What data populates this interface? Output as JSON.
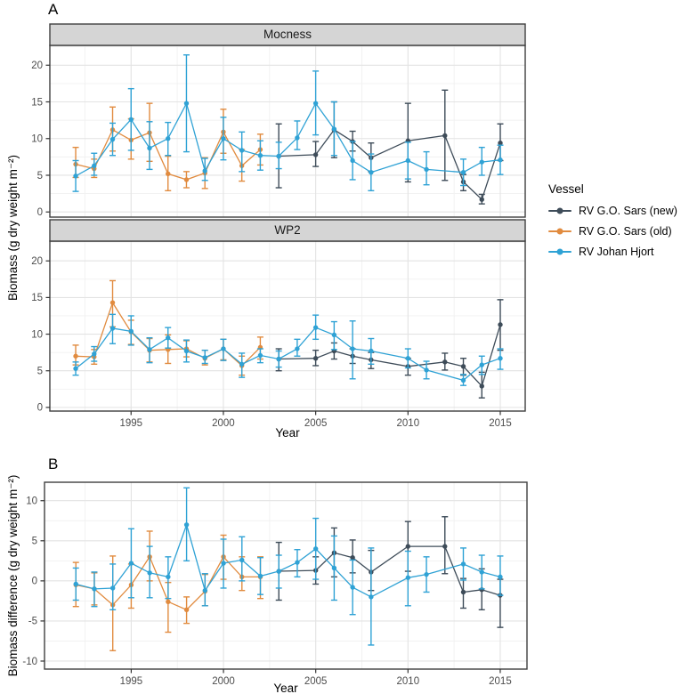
{
  "figure": {
    "panel_a_label": "A",
    "panel_b_label": "B",
    "y_axis_label_biomass": "Biomass (g dry weight  m⁻²)",
    "y_axis_label_difference": "Biomass difference (g dry weight  m⁻²)",
    "x_axis_label": "Year"
  },
  "legend": {
    "title": "Vessel",
    "entries": [
      {
        "label": "RV G.O. Sars (new)",
        "color": "#3E4C59"
      },
      {
        "label": "RV G.O. Sars (old)",
        "color": "#E18B3F"
      },
      {
        "label": "RV Johan Hjort",
        "color": "#2FA2D5"
      }
    ]
  },
  "colors": {
    "grid_major": "#e3e3e3",
    "grid_minor": "#f1f1f1",
    "panel_border": "#3f3f3f",
    "strip_bg": "#d5d5d5",
    "tick_text": "#4d4d4d"
  },
  "chart_data": [
    {
      "type": "line",
      "title": "Mocness",
      "xlabel": "Year",
      "ylabel": "Biomass (g dry weight m⁻²)",
      "xlim": [
        1990.6,
        2016.35
      ],
      "ylim": [
        -0.7,
        22.7
      ],
      "x_ticks": [
        1995,
        2000,
        2005,
        2010,
        2015
      ],
      "x_minor_ticks": [
        1992.5,
        1997.5,
        2002.5,
        2007.5,
        2012.5
      ],
      "y_ticks": [
        0,
        5,
        10,
        15,
        20
      ],
      "y_minor_ticks": [
        2.5,
        7.5,
        12.5,
        17.5,
        22.5
      ],
      "error_bars": true,
      "series": [
        {
          "name": "RV G.O. Sars (new)",
          "color": "#3E4C59",
          "x": [
            2003,
            2005,
            2006,
            2007,
            2008,
            2010,
            2012,
            2013,
            2014,
            2015
          ],
          "y": [
            7.6,
            7.8,
            11.2,
            9.6,
            7.4,
            9.7,
            10.4,
            4.1,
            1.7,
            9.4
          ],
          "ylo": [
            3.3,
            6.2,
            7.4,
            8.3,
            5.5,
            4.1,
            4.3,
            2.9,
            1.1,
            7.0
          ],
          "yhi": [
            12.0,
            9.6,
            15.0,
            11.0,
            9.4,
            14.8,
            16.6,
            5.1,
            2.4,
            12.0
          ]
        },
        {
          "name": "RV G.O. Sars (old)",
          "color": "#E18B3F",
          "x": [
            1992,
            1993,
            1994,
            1995,
            1996,
            1997,
            1998,
            1999,
            2000,
            2001,
            2002
          ],
          "y": [
            6.5,
            5.9,
            11.2,
            9.8,
            10.8,
            5.2,
            4.4,
            5.3,
            10.9,
            6.3,
            8.5
          ],
          "ylo": [
            4.7,
            4.7,
            8.3,
            7.2,
            6.9,
            2.9,
            3.3,
            3.2,
            8.0,
            4.2,
            6.4
          ],
          "yhi": [
            8.8,
            7.2,
            14.3,
            12.7,
            14.8,
            7.6,
            5.5,
            7.4,
            14.0,
            8.5,
            10.6
          ]
        },
        {
          "name": "RV Johan Hjort",
          "color": "#2FA2D5",
          "x": [
            1992,
            1993,
            1994,
            1995,
            1996,
            1997,
            1998,
            1999,
            2000,
            2001,
            2002,
            2003,
            2004,
            2005,
            2006,
            2007,
            2008,
            2010,
            2011,
            2013,
            2014,
            2015
          ],
          "y": [
            4.9,
            6.3,
            9.9,
            12.6,
            8.7,
            10.0,
            14.8,
            5.6,
            10.0,
            8.4,
            7.7,
            7.6,
            10.1,
            14.8,
            11.3,
            7.0,
            5.4,
            7.0,
            5.8,
            5.4,
            6.8,
            7.1
          ],
          "ylo": [
            2.8,
            5.0,
            7.7,
            8.4,
            5.8,
            7.7,
            8.2,
            4.3,
            7.1,
            5.5,
            5.7,
            5.9,
            8.5,
            10.5,
            7.7,
            4.4,
            2.9,
            4.5,
            3.7,
            3.6,
            5.0,
            5.1
          ],
          "yhi": [
            7.0,
            8.0,
            12.1,
            16.8,
            12.3,
            12.2,
            21.4,
            7.3,
            12.9,
            10.9,
            9.7,
            9.5,
            12.4,
            19.2,
            15.0,
            9.6,
            7.9,
            9.5,
            8.2,
            7.2,
            8.8,
            9.1
          ]
        }
      ]
    },
    {
      "type": "line",
      "title": "WP2",
      "xlabel": "Year",
      "ylabel": "Biomass (g dry weight m⁻²)",
      "xlim": [
        1990.6,
        2016.35
      ],
      "ylim": [
        -0.5,
        22.7
      ],
      "x_ticks": [
        1995,
        2000,
        2005,
        2010,
        2015
      ],
      "x_minor_ticks": [
        1992.5,
        1997.5,
        2002.5,
        2007.5,
        2012.5
      ],
      "y_ticks": [
        0,
        5,
        10,
        15,
        20
      ],
      "y_minor_ticks": [
        2.5,
        7.5,
        12.5,
        17.5,
        22.5
      ],
      "error_bars": true,
      "series": [
        {
          "name": "RV G.O. Sars (new)",
          "color": "#3E4C59",
          "x": [
            2003,
            2005,
            2006,
            2007,
            2008,
            2010,
            2012,
            2013,
            2014,
            2015
          ],
          "y": [
            6.6,
            6.7,
            7.7,
            7.0,
            6.5,
            5.6,
            6.2,
            5.6,
            2.9,
            11.3
          ],
          "ylo": [
            5.0,
            5.7,
            6.6,
            6.0,
            5.3,
            4.4,
            5.1,
            4.4,
            1.3,
            7.8
          ],
          "yhi": [
            8.0,
            7.8,
            8.8,
            8.0,
            7.5,
            6.7,
            7.4,
            6.7,
            4.8,
            14.7
          ]
        },
        {
          "name": "RV G.O. Sars (old)",
          "color": "#E18B3F",
          "x": [
            1992,
            1993,
            1994,
            1995,
            1996,
            1997,
            1998,
            1999,
            2000,
            2001,
            2002
          ],
          "y": [
            7.0,
            6.9,
            14.3,
            10.3,
            7.8,
            7.9,
            8.0,
            6.7,
            8.0,
            5.7,
            8.2
          ],
          "ylo": [
            5.8,
            5.9,
            11.0,
            8.6,
            6.2,
            6.0,
            6.9,
            5.8,
            6.5,
            4.4,
            6.6
          ],
          "yhi": [
            8.5,
            7.9,
            17.3,
            11.9,
            9.4,
            9.9,
            9.1,
            7.8,
            9.3,
            7.0,
            9.6
          ]
        },
        {
          "name": "RV Johan Hjort",
          "color": "#2FA2D5",
          "x": [
            1992,
            1993,
            1994,
            1995,
            1996,
            1997,
            1998,
            1999,
            2000,
            2001,
            2002,
            2003,
            2004,
            2005,
            2006,
            2007,
            2008,
            2010,
            2011,
            2013,
            2014,
            2015
          ],
          "y": [
            5.3,
            7.3,
            10.8,
            10.4,
            7.9,
            9.5,
            7.7,
            6.8,
            8.0,
            5.9,
            7.1,
            6.6,
            8.0,
            10.9,
            9.9,
            8.0,
            7.7,
            6.7,
            5.1,
            3.7,
            5.8,
            6.7
          ],
          "ylo": [
            4.4,
            6.3,
            8.7,
            8.5,
            6.1,
            8.1,
            6.2,
            6.0,
            6.4,
            4.1,
            6.1,
            5.5,
            7.0,
            9.3,
            7.9,
            3.9,
            5.9,
            5.4,
            3.9,
            3.0,
            4.5,
            5.2
          ],
          "yhi": [
            6.2,
            8.3,
            12.7,
            12.5,
            9.5,
            10.9,
            9.2,
            7.8,
            9.3,
            7.4,
            8.0,
            7.7,
            9.3,
            12.6,
            11.7,
            11.8,
            9.4,
            8.0,
            6.3,
            4.5,
            7.0,
            8.0
          ]
        }
      ]
    },
    {
      "type": "line",
      "title": "",
      "xlabel": "Year",
      "ylabel": "Biomass difference (g dry weight m⁻²)",
      "xlim": [
        1990.3,
        2016.45
      ],
      "ylim": [
        -11.0,
        12.3
      ],
      "x_ticks": [
        1995,
        2000,
        2005,
        2010,
        2015
      ],
      "x_minor_ticks": [
        1992.5,
        1997.5,
        2002.5,
        2007.5,
        2012.5
      ],
      "y_ticks": [
        -10,
        -5,
        0,
        5,
        10
      ],
      "y_minor_ticks": [
        -7.5,
        -2.5,
        2.5,
        7.5
      ],
      "error_bars": true,
      "series": [
        {
          "name": "RV G.O. Sars (new)",
          "color": "#3E4C59",
          "x": [
            2003,
            2005,
            2006,
            2007,
            2008,
            2010,
            2012,
            2013,
            2014,
            2015
          ],
          "y": [
            1.2,
            1.3,
            3.5,
            2.9,
            1.1,
            4.3,
            4.3,
            -1.4,
            -1.1,
            -1.8
          ],
          "ylo": [
            -2.4,
            -0.4,
            0.5,
            1.0,
            -1.2,
            1.2,
            0.9,
            -3.4,
            -3.6,
            -5.8
          ],
          "yhi": [
            4.8,
            3.0,
            6.6,
            5.1,
            3.8,
            7.4,
            8.0,
            0.3,
            1.5,
            0.2
          ]
        },
        {
          "name": "RV G.O. Sars (old)",
          "color": "#E18B3F",
          "x": [
            1992,
            1993,
            1994,
            1995,
            1996,
            1997,
            1998,
            1999,
            2000,
            2001,
            2002
          ],
          "y": [
            -0.5,
            -1.0,
            -3.0,
            -0.5,
            3.0,
            -2.6,
            -3.6,
            -1.3,
            3.0,
            0.5,
            0.5
          ],
          "ylo": [
            -3.2,
            -3.0,
            -8.7,
            -3.4,
            0.0,
            -6.4,
            -5.3,
            -3.1,
            0.2,
            -1.2,
            -2.2
          ],
          "yhi": [
            2.3,
            1.0,
            3.1,
            2.1,
            6.2,
            -0.2,
            -2.0,
            0.8,
            5.7,
            3.0,
            3.0
          ]
        },
        {
          "name": "RV Johan Hjort",
          "color": "#2FA2D5",
          "x": [
            1992,
            1993,
            1994,
            1995,
            1996,
            1997,
            1998,
            1999,
            2000,
            2001,
            2002,
            2003,
            2004,
            2005,
            2006,
            2007,
            2008,
            2010,
            2011,
            2013,
            2014,
            2015
          ],
          "y": [
            -0.4,
            -1.0,
            -0.9,
            2.2,
            1.0,
            0.5,
            7.0,
            -1.2,
            2.2,
            2.6,
            0.6,
            1.2,
            2.3,
            4.0,
            1.6,
            -0.8,
            -2.0,
            0.4,
            0.8,
            2.1,
            1.1,
            0.5
          ],
          "ylo": [
            -2.4,
            -3.2,
            -3.6,
            -2.1,
            -2.1,
            -2.2,
            2.5,
            -3.1,
            -0.9,
            0.0,
            -1.7,
            -0.9,
            0.5,
            0.2,
            -2.4,
            -4.2,
            -8.0,
            -3.1,
            -1.4,
            0.1,
            -1.0,
            -1.8
          ],
          "yhi": [
            1.6,
            1.1,
            2.1,
            6.5,
            4.3,
            3.0,
            11.6,
            0.9,
            5.2,
            5.5,
            2.9,
            3.2,
            3.9,
            7.8,
            5.6,
            2.6,
            4.1,
            3.7,
            3.0,
            4.1,
            3.2,
            3.1
          ]
        }
      ]
    }
  ]
}
